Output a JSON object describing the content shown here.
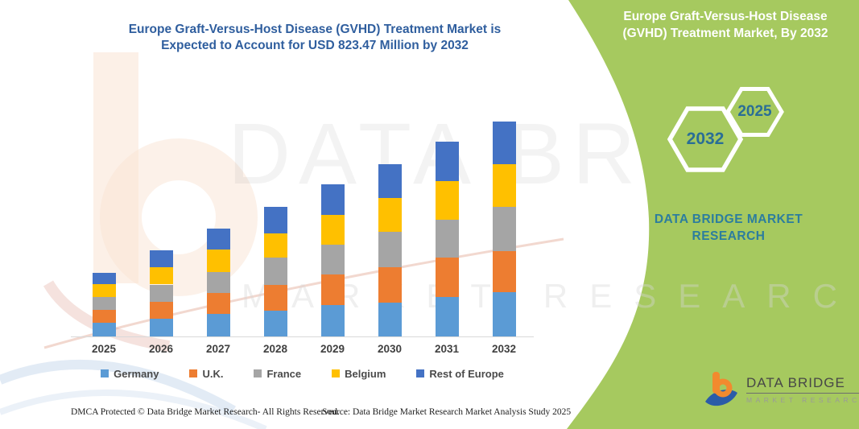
{
  "title": {
    "line1": "Europe  Graft-Versus-Host Disease (GVHD) Treatment Market is",
    "line2": "Expected to Account for USD 823.47 Million by 2032"
  },
  "panel": {
    "bg_color": "#A6C95F",
    "title_line1": "Europe  Graft-Versus-Host Disease",
    "title_line2": "(GVHD) Treatment Market, By 2032",
    "badge_back_label": "2032",
    "badge_front_label": "2025",
    "brand_text": "DATA BRIDGE MARKET RESEARCH"
  },
  "watermark": {
    "big_text": "DATA BRIDGE",
    "sub_text": "MARKET RESEARCH"
  },
  "logo": {
    "name": "DATA BRIDGE",
    "subtitle": "MARKET RESEARCH"
  },
  "footer": {
    "left": "DMCA Protected © Data Bridge Market Research-  All Rights Reserved.",
    "right": "Source: Data Bridge Market Research  Market Analysis Study 2025"
  },
  "chart_data": {
    "type": "bar",
    "stacked": true,
    "unit": "USD Million",
    "title": "Europe Graft-Versus-Host Disease (GVHD) Treatment Market",
    "categories": [
      "2025",
      "2026",
      "2027",
      "2028",
      "2029",
      "2030",
      "2031",
      "2032"
    ],
    "series": [
      {
        "name": "Germany",
        "color": "#5B9BD5",
        "values": [
          53,
          68,
          87,
          99,
          119,
          130,
          151,
          170
        ]
      },
      {
        "name": "U.K.",
        "color": "#ED7D31",
        "values": [
          50,
          65,
          81,
          97,
          118,
          135,
          151,
          158
        ]
      },
      {
        "name": "France",
        "color": "#A5A5A5",
        "values": [
          47,
          66,
          80,
          106,
          114,
          135,
          145,
          168
        ]
      },
      {
        "name": "Belgium",
        "color": "#FFC000",
        "values": [
          50,
          66,
          86,
          94,
          114,
          130,
          149,
          164
        ]
      },
      {
        "name": "Rest of Europe",
        "color": "#4472C4",
        "values": [
          43,
          66,
          80,
          100,
          117,
          131,
          149,
          163.47
        ]
      }
    ],
    "totals": [
      243,
      331,
      414,
      496,
      582,
      661,
      745,
      823.47
    ],
    "annotated_value_2032": 823.47,
    "ylim": [
      0,
      900
    ],
    "value_axis_visible": false,
    "grid": false,
    "legend_position": "bottom"
  }
}
